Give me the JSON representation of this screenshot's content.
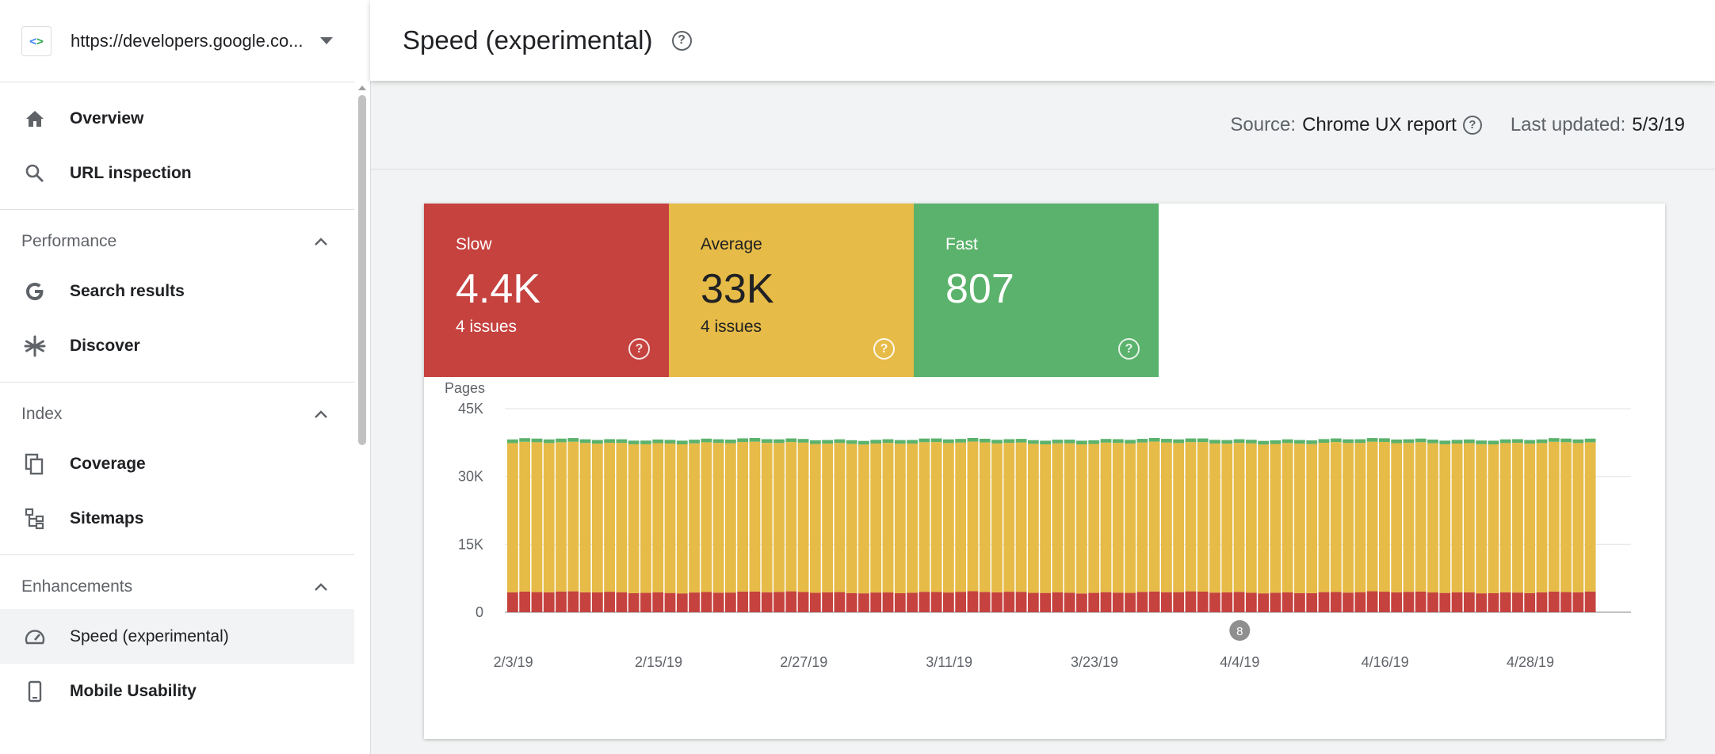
{
  "sidebar": {
    "property_url": "https://developers.google.co...",
    "top_items": [
      {
        "label": "Overview",
        "icon": "home-icon"
      },
      {
        "label": "URL inspection",
        "icon": "search-icon"
      }
    ],
    "sections": [
      {
        "title": "Performance",
        "items": [
          {
            "label": "Search results",
            "icon": "google-g-icon"
          },
          {
            "label": "Discover",
            "icon": "asterisk-icon"
          }
        ]
      },
      {
        "title": "Index",
        "items": [
          {
            "label": "Coverage",
            "icon": "pages-icon"
          },
          {
            "label": "Sitemaps",
            "icon": "sitemap-icon"
          }
        ]
      },
      {
        "title": "Enhancements",
        "items": [
          {
            "label": "Speed (experimental)",
            "icon": "speed-gauge-icon"
          },
          {
            "label": "Mobile Usability",
            "icon": "phone-icon"
          }
        ]
      }
    ]
  },
  "header": {
    "title": "Speed (experimental)"
  },
  "sourcebar": {
    "source_label": "Source:",
    "source_value": "Chrome UX report",
    "updated_label": "Last updated:",
    "updated_value": "5/3/19"
  },
  "tiles": {
    "slow": {
      "label": "Slow",
      "value": "4.4K",
      "issues": "4 issues",
      "color": "#c5423f"
    },
    "average": {
      "label": "Average",
      "value": "33K",
      "issues": "4 issues",
      "color": "#e6bb47"
    },
    "fast": {
      "label": "Fast",
      "value": "807",
      "issues": "",
      "color": "#5bb26c"
    }
  },
  "chart_data": {
    "type": "bar",
    "stacked": true,
    "ylabel": "Pages",
    "ylim": [
      0,
      45000
    ],
    "yticks": [
      "45K",
      "30K",
      "15K",
      "0"
    ],
    "ytick_values": [
      45000,
      30000,
      15000,
      0
    ],
    "xtick_labels": [
      "2/3/19",
      "2/15/19",
      "2/27/19",
      "3/11/19",
      "3/23/19",
      "4/4/19",
      "4/16/19",
      "4/28/19"
    ],
    "annotation": {
      "label": "8",
      "date": "4/4/19"
    },
    "series": [
      {
        "name": "Slow",
        "color": "#c5423f",
        "approx_per_day": 4400
      },
      {
        "name": "Average",
        "color": "#e6bb47",
        "approx_per_day": 33000
      },
      {
        "name": "Fast",
        "color": "#5bb26c",
        "approx_per_day": 807
      }
    ],
    "days": 90,
    "grid": true
  }
}
